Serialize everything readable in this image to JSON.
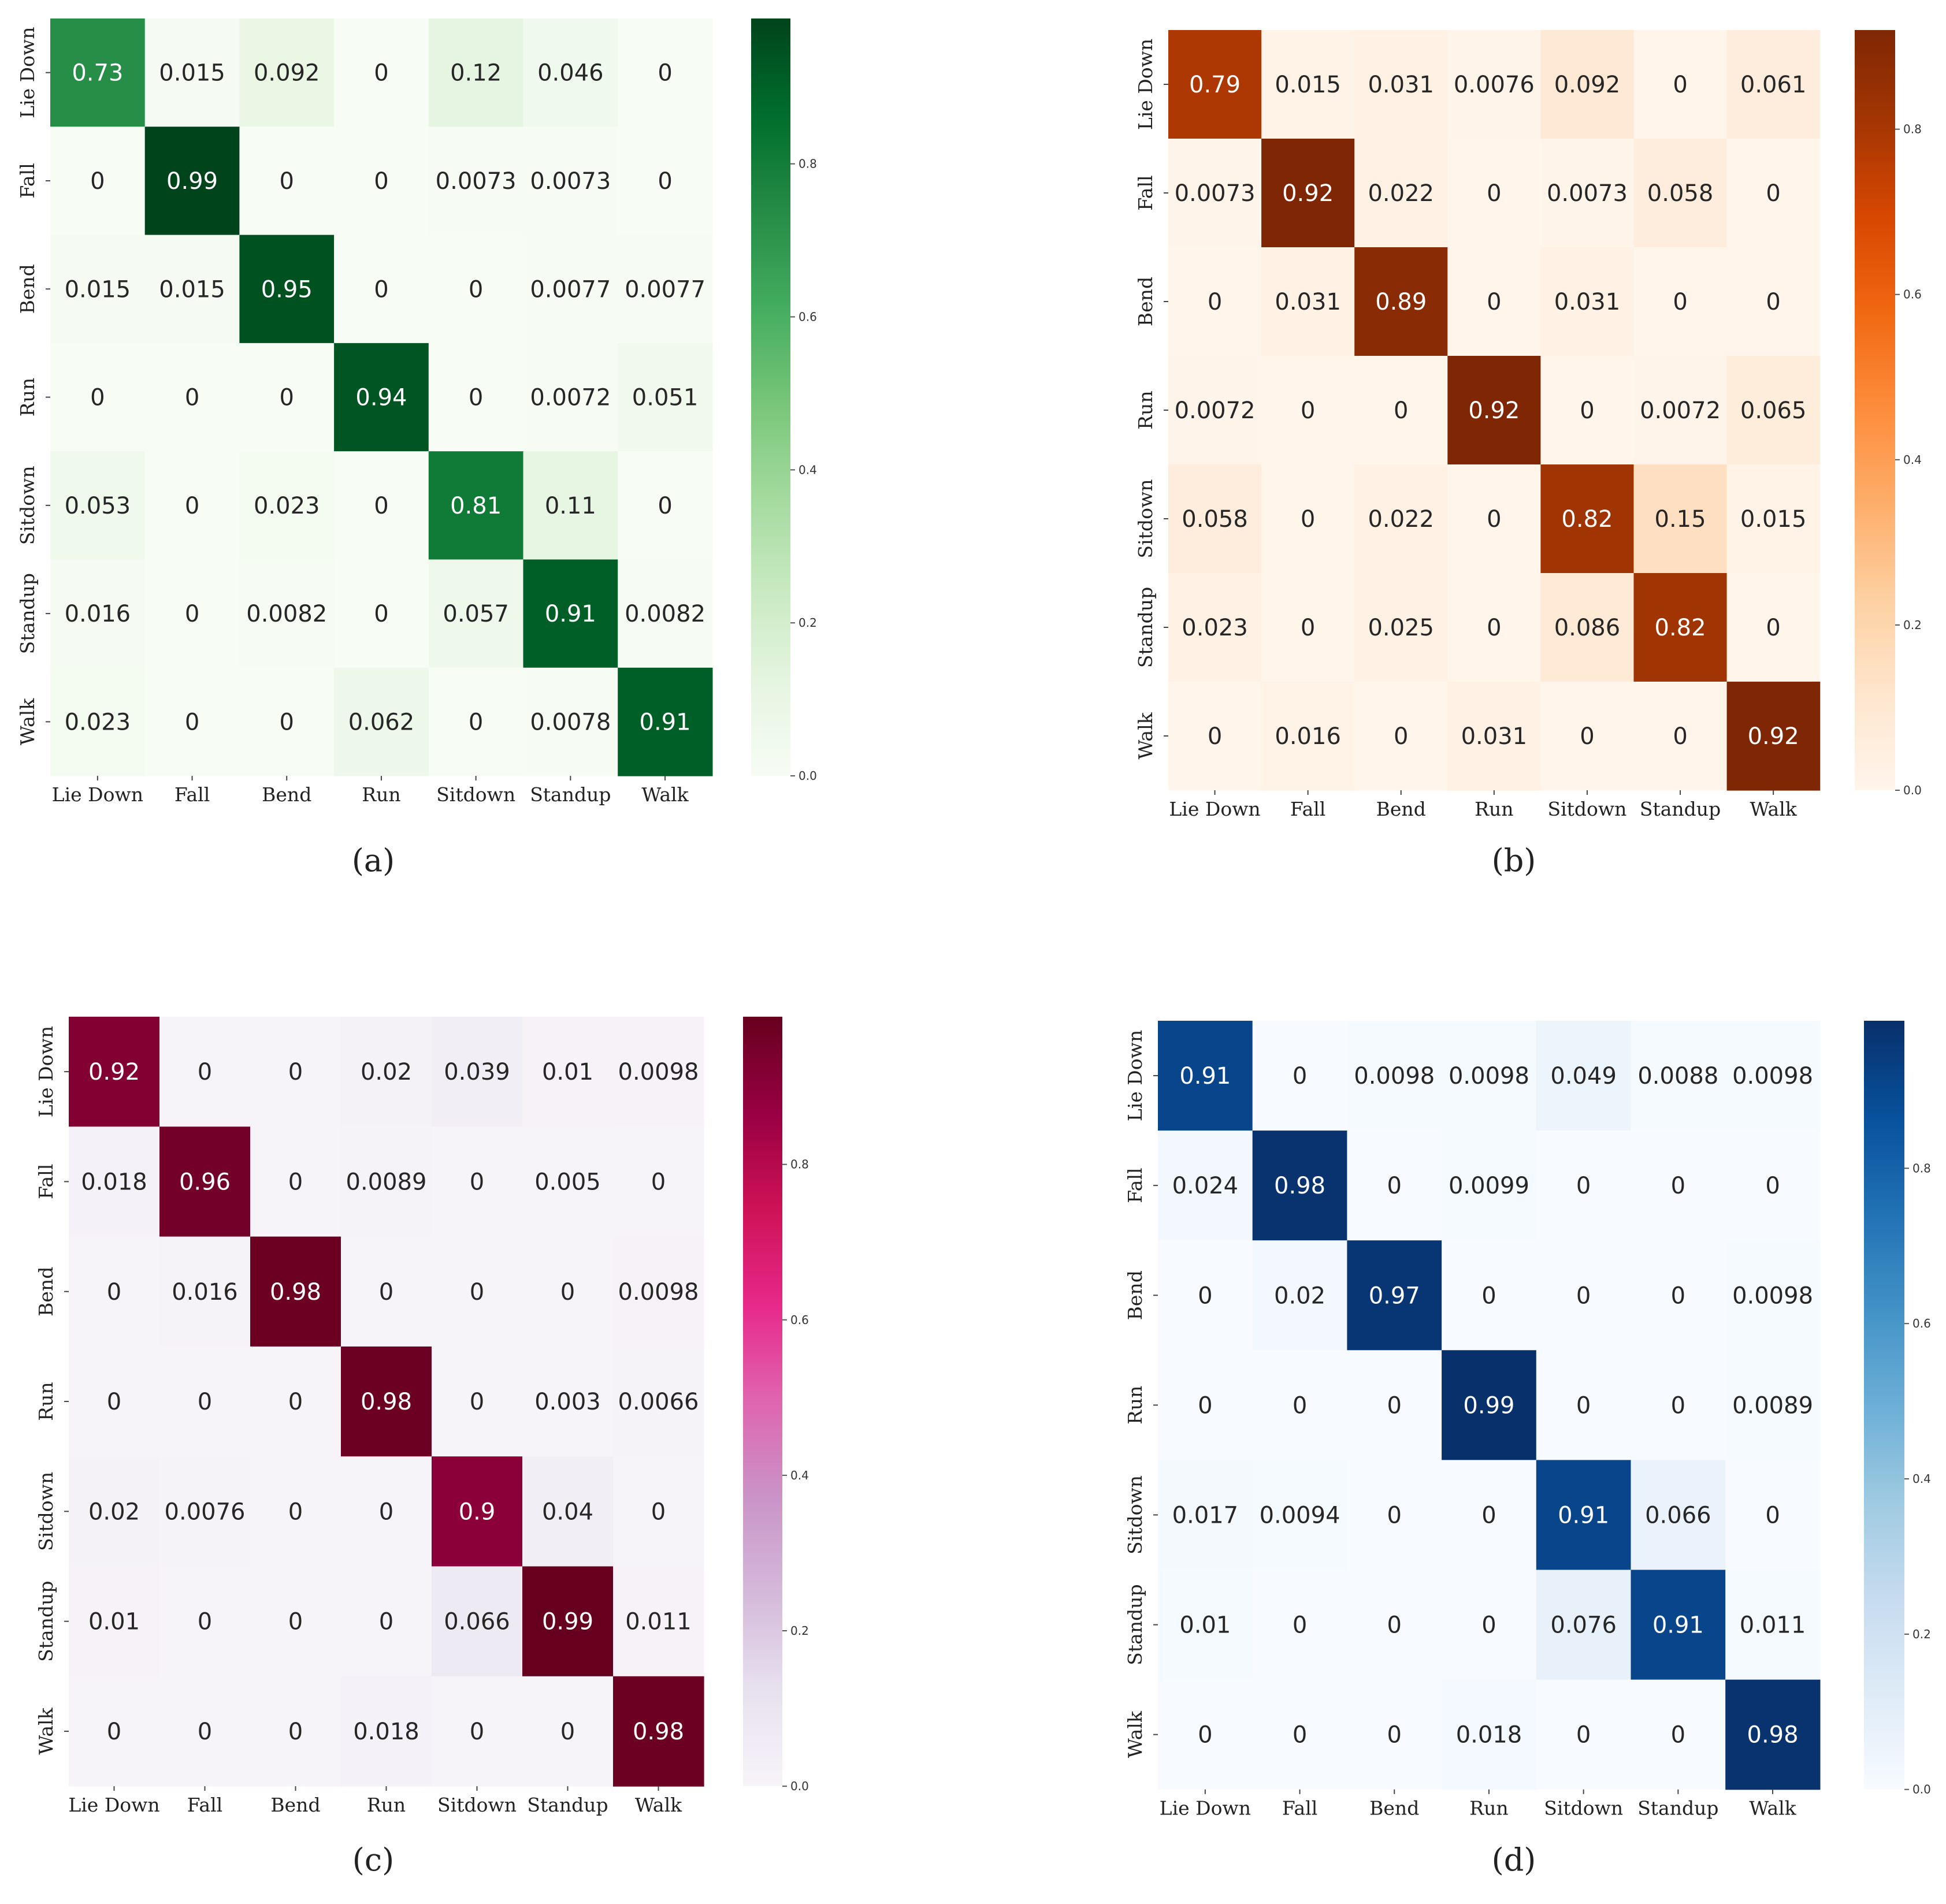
{
  "chart_data": [
    {
      "panel": "a",
      "type": "heatmap",
      "caption": "(a)",
      "colormap": "Greens",
      "colors": [
        "#f7fcf5",
        "#e5f5e0",
        "#c7e9c0",
        "#a1d99b",
        "#74c476",
        "#41ab5d",
        "#238b45",
        "#006d2c",
        "#00441b"
      ],
      "x_labels": [
        "Lie Down",
        "Fall",
        "Bend",
        "Run",
        "Sitdown",
        "Standup",
        "Walk"
      ],
      "y_labels": [
        "Lie Down",
        "Fall",
        "Bend",
        "Run",
        "Sitdown",
        "Standup",
        "Walk"
      ],
      "values": [
        [
          "0.73",
          "0.015",
          "0.092",
          "0",
          "0.12",
          "0.046",
          "0"
        ],
        [
          "0",
          "0.99",
          "0",
          "0",
          "0.0073",
          "0.0073",
          "0"
        ],
        [
          "0.015",
          "0.015",
          "0.95",
          "0",
          "0",
          "0.0077",
          "0.0077"
        ],
        [
          "0",
          "0",
          "0",
          "0.94",
          "0",
          "0.0072",
          "0.051"
        ],
        [
          "0.053",
          "0",
          "0.023",
          "0",
          "0.81",
          "0.11",
          "0"
        ],
        [
          "0.016",
          "0",
          "0.0082",
          "0",
          "0.057",
          "0.91",
          "0.0082"
        ],
        [
          "0.023",
          "0",
          "0",
          "0.062",
          "0",
          "0.0078",
          "0.91"
        ]
      ],
      "colorbar": {
        "min": 0,
        "max": 0.99,
        "ticks": [
          "0.0",
          "0.2",
          "0.4",
          "0.6",
          "0.8"
        ]
      }
    },
    {
      "panel": "b",
      "type": "heatmap",
      "caption": "(b)",
      "colormap": "Oranges",
      "colors": [
        "#fff5eb",
        "#fee6ce",
        "#fdd0a2",
        "#fdae6b",
        "#fd8d3c",
        "#f16913",
        "#d94801",
        "#a63603",
        "#7f2704"
      ],
      "x_labels": [
        "Lie Down",
        "Fall",
        "Bend",
        "Run",
        "Sitdown",
        "Standup",
        "Walk"
      ],
      "y_labels": [
        "Lie Down",
        "Fall",
        "Bend",
        "Run",
        "Sitdown",
        "Standup",
        "Walk"
      ],
      "values": [
        [
          "0.79",
          "0.015",
          "0.031",
          "0.0076",
          "0.092",
          "0",
          "0.061"
        ],
        [
          "0.0073",
          "0.92",
          "0.022",
          "0",
          "0.0073",
          "0.058",
          "0"
        ],
        [
          "0",
          "0.031",
          "0.89",
          "0",
          "0.031",
          "0",
          "0"
        ],
        [
          "0.0072",
          "0",
          "0",
          "0.92",
          "0",
          "0.0072",
          "0.065"
        ],
        [
          "0.058",
          "0",
          "0.022",
          "0",
          "0.82",
          "0.15",
          "0.015"
        ],
        [
          "0.023",
          "0",
          "0.025",
          "0",
          "0.086",
          "0.82",
          "0"
        ],
        [
          "0",
          "0.016",
          "0",
          "0.031",
          "0",
          "0",
          "0.92"
        ]
      ],
      "colorbar": {
        "min": 0,
        "max": 0.92,
        "ticks": [
          "0.0",
          "0.2",
          "0.4",
          "0.6",
          "0.8"
        ]
      }
    },
    {
      "panel": "c",
      "type": "heatmap",
      "caption": "(c)",
      "colormap": "PuRd",
      "colors": [
        "#f7f4f9",
        "#e7e1ef",
        "#d4b9da",
        "#c994c7",
        "#df65b0",
        "#e7298a",
        "#ce1256",
        "#980043",
        "#67001f"
      ],
      "x_labels": [
        "Lie Down",
        "Fall",
        "Bend",
        "Run",
        "Sitdown",
        "Standup",
        "Walk"
      ],
      "y_labels": [
        "Lie Down",
        "Fall",
        "Bend",
        "Run",
        "Sitdown",
        "Standup",
        "Walk"
      ],
      "values": [
        [
          "0.92",
          "0",
          "0",
          "0.02",
          "0.039",
          "0.01",
          "0.0098"
        ],
        [
          "0.018",
          "0.96",
          "0",
          "0.0089",
          "0",
          "0.005",
          "0"
        ],
        [
          "0",
          "0.016",
          "0.98",
          "0",
          "0",
          "0",
          "0.0098"
        ],
        [
          "0",
          "0",
          "0",
          "0.98",
          "0",
          "0.003",
          "0.0066"
        ],
        [
          "0.02",
          "0.0076",
          "0",
          "0",
          "0.9",
          "0.04",
          "0"
        ],
        [
          "0.01",
          "0",
          "0",
          "0",
          "0.066",
          "0.99",
          "0.011"
        ],
        [
          "0",
          "0",
          "0",
          "0.018",
          "0",
          "0",
          "0.98"
        ]
      ],
      "colorbar": {
        "min": 0,
        "max": 0.99,
        "ticks": [
          "0.0",
          "0.2",
          "0.4",
          "0.6",
          "0.8"
        ]
      }
    },
    {
      "panel": "d",
      "type": "heatmap",
      "caption": "(d)",
      "colormap": "Blues",
      "colors": [
        "#f7fbff",
        "#deebf7",
        "#c6dbef",
        "#9ecae1",
        "#6baed6",
        "#4292c6",
        "#2171b5",
        "#08519c",
        "#08306b"
      ],
      "x_labels": [
        "Lie Down",
        "Fall",
        "Bend",
        "Run",
        "Sitdown",
        "Standup",
        "Walk"
      ],
      "y_labels": [
        "Lie Down",
        "Fall",
        "Bend",
        "Run",
        "Sitdown",
        "Standup",
        "Walk"
      ],
      "values": [
        [
          "0.91",
          "0",
          "0.0098",
          "0.0098",
          "0.049",
          "0.0088",
          "0.0098"
        ],
        [
          "0.024",
          "0.98",
          "0",
          "0.0099",
          "0",
          "0",
          "0"
        ],
        [
          "0",
          "0.02",
          "0.97",
          "0",
          "0",
          "0",
          "0.0098"
        ],
        [
          "0",
          "0",
          "0",
          "0.99",
          "0",
          "0",
          "0.0089"
        ],
        [
          "0.017",
          "0.0094",
          "0",
          "0",
          "0.91",
          "0.066",
          "0"
        ],
        [
          "0.01",
          "0",
          "0",
          "0",
          "0.076",
          "0.91",
          "0.011"
        ],
        [
          "0",
          "0",
          "0",
          "0.018",
          "0",
          "0",
          "0.98"
        ]
      ],
      "colorbar": {
        "min": 0,
        "max": 0.99,
        "ticks": [
          "0.0",
          "0.2",
          "0.4",
          "0.6",
          "0.8"
        ]
      }
    }
  ]
}
